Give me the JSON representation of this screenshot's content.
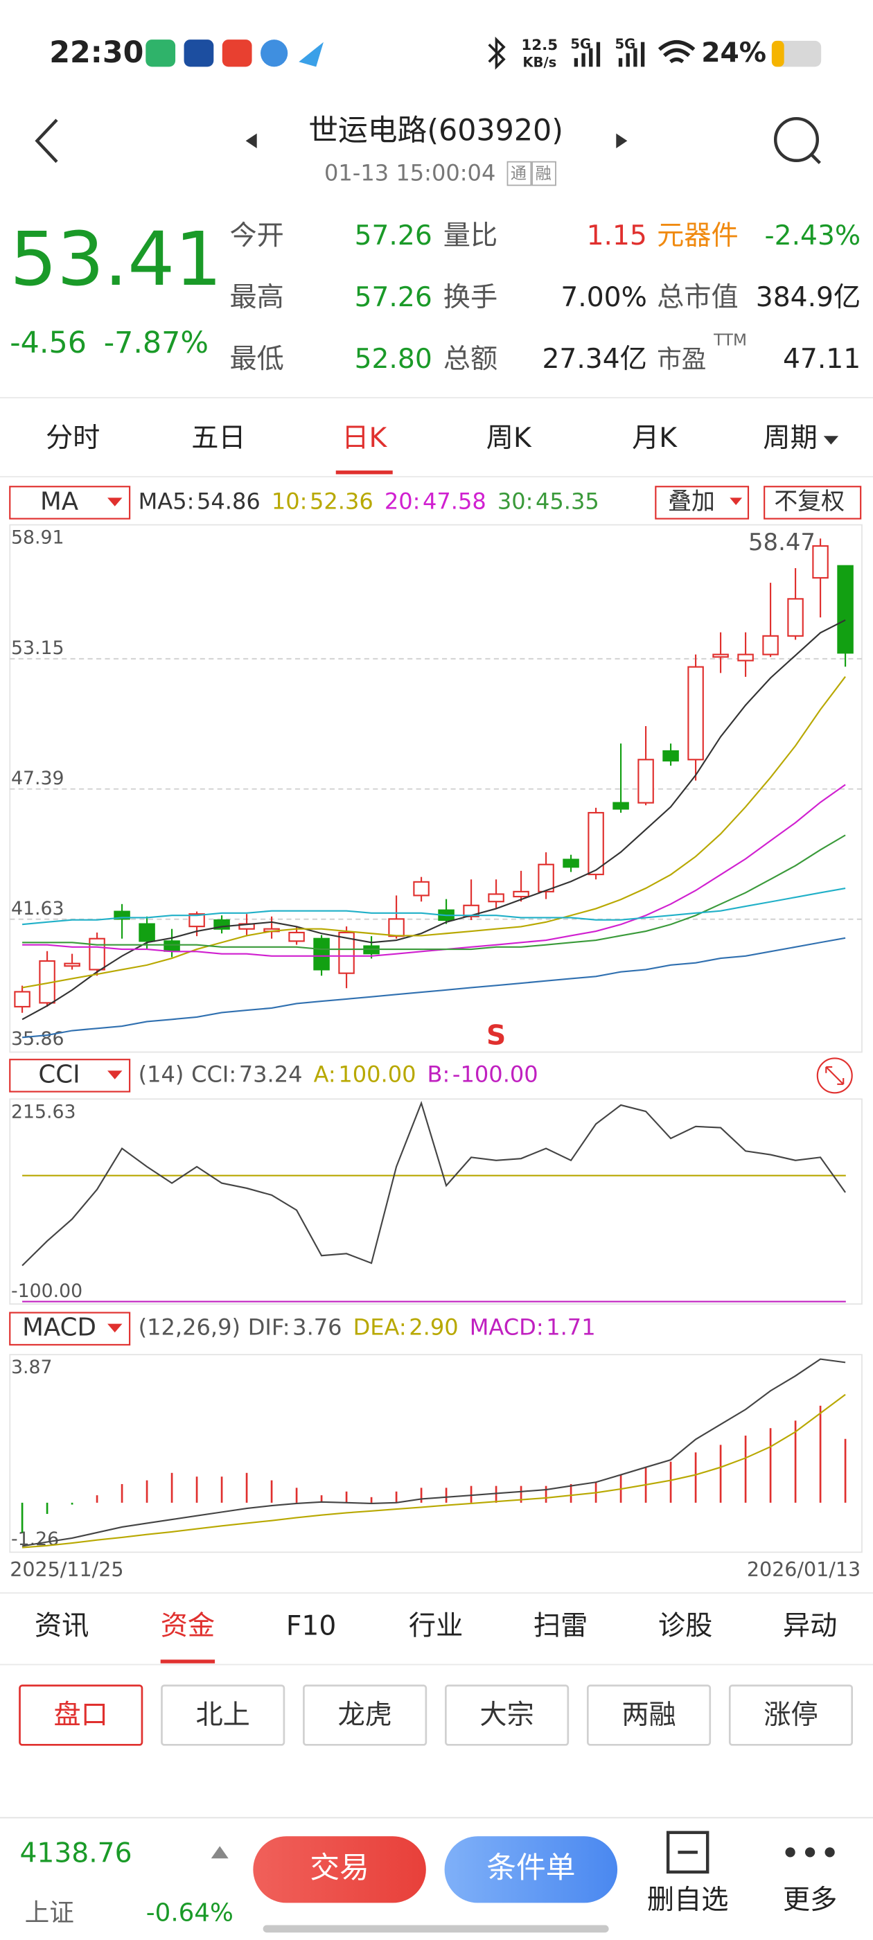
{
  "status_bar": {
    "time": "22:30",
    "net_speed": "12.5",
    "net_unit": "KB/s",
    "signal_1": "5G",
    "signal_2": "5G",
    "battery": "24%"
  },
  "header": {
    "title": "世运电路(603920)",
    "datetime": "01-13 15:00:04",
    "badges": [
      "通",
      "融"
    ]
  },
  "quote": {
    "price": "53.41",
    "change": "-4.56",
    "change_pct": "-7.87%",
    "stats": [
      [
        {
          "label": "今开",
          "value": "57.26",
          "value_color": "#1a9a28"
        },
        {
          "label": "量比",
          "value": "1.15",
          "value_color": "#e0302e"
        },
        {
          "label": "元器件",
          "label_color": "#f08a10",
          "value": "-2.43%",
          "value_color": "#1a9a28"
        }
      ],
      [
        {
          "label": "最高",
          "value": "57.26",
          "value_color": "#1a9a28"
        },
        {
          "label": "换手",
          "value": "7.00%"
        },
        {
          "label": "总市值",
          "value": "384.9亿"
        }
      ],
      [
        {
          "label": "最低",
          "value": "52.80",
          "value_color": "#1a9a28"
        },
        {
          "label": "总额",
          "value": "27.34亿"
        },
        {
          "label": "市盈",
          "sup": "TTM",
          "value": "47.11"
        }
      ]
    ]
  },
  "tabs": {
    "items": [
      "分时",
      "五日",
      "日K",
      "周K",
      "月K",
      "周期"
    ],
    "selected": 2
  },
  "chart_data": [
    {
      "type": "candlestick",
      "indicator": "MA",
      "buttons": [
        "叠加",
        "不复权"
      ],
      "up_color": "#e0302e",
      "down_color": "#12a012",
      "grid": true,
      "ylim": [
        35.86,
        58.91
      ],
      "yticks": [
        58.91,
        53.15,
        47.39,
        41.63,
        35.86
      ],
      "open": [
        37.76,
        37.93,
        39.56,
        39.4,
        41.97,
        41.42,
        40.66,
        41.31,
        41.59,
        41.2,
        41.09,
        40.66,
        40.77,
        39.24,
        40.44,
        40.88,
        42.68,
        42.03,
        41.75,
        42.41,
        42.63,
        42.85,
        44.27,
        43.61,
        46.78,
        46.78,
        49.07,
        48.69,
        53.23,
        53.07,
        53.34,
        54.16,
        56.73,
        57.26
      ],
      "high": [
        38.69,
        40.22,
        40.1,
        41.04,
        42.3,
        41.75,
        41.2,
        41.97,
        41.8,
        41.86,
        41.75,
        41.31,
        40.93,
        41.31,
        40.88,
        42.68,
        43.5,
        42.52,
        43.39,
        43.39,
        43.77,
        44.59,
        44.48,
        46.56,
        49.4,
        50.17,
        49.4,
        53.34,
        54.32,
        54.32,
        56.51,
        57.16,
        58.47,
        57.26
      ],
      "low": [
        37.49,
        37.76,
        39.4,
        39.13,
        40.77,
        40.33,
        39.95,
        40.88,
        41.0,
        40.88,
        40.77,
        40.5,
        39.13,
        38.58,
        39.89,
        40.77,
        42.41,
        41.42,
        41.59,
        42.13,
        42.41,
        42.52,
        43.72,
        43.39,
        46.34,
        46.67,
        48.42,
        47.76,
        52.52,
        52.35,
        53.23,
        53.99,
        54.98,
        52.8
      ],
      "close": [
        38.42,
        39.78,
        39.67,
        40.77,
        41.64,
        40.66,
        40.22,
        41.86,
        41.2,
        41.42,
        41.2,
        41.04,
        39.4,
        41.04,
        40.11,
        41.64,
        43.28,
        41.59,
        42.24,
        42.74,
        42.85,
        44.05,
        43.94,
        46.34,
        46.51,
        48.69,
        48.64,
        52.79,
        53.34,
        53.34,
        54.16,
        55.8,
        58.14,
        53.41
      ],
      "series": [
        {
          "name": "MA5:",
          "color": "#333333",
          "values": [
            37.2,
            37.8,
            38.5,
            39.3,
            40.0,
            40.6,
            40.8,
            41.1,
            41.3,
            41.4,
            41.5,
            41.3,
            41.0,
            40.8,
            40.6,
            40.7,
            41.0,
            41.5,
            41.8,
            42.1,
            42.5,
            42.9,
            43.3,
            43.8,
            44.6,
            45.6,
            46.6,
            48.0,
            49.7,
            51.1,
            52.3,
            53.3,
            54.3,
            54.86
          ]
        },
        {
          "name": "10:",
          "color": "#b8a800",
          "values": [
            38.6,
            38.8,
            39.0,
            39.2,
            39.4,
            39.6,
            39.9,
            40.3,
            40.6,
            40.9,
            41.1,
            41.2,
            41.2,
            41.1,
            41.0,
            40.9,
            40.9,
            41.0,
            41.1,
            41.2,
            41.3,
            41.5,
            41.8,
            42.1,
            42.5,
            43.0,
            43.6,
            44.4,
            45.4,
            46.6,
            47.9,
            49.3,
            50.9,
            52.36
          ]
        },
        {
          "name": "20:",
          "color": "#d020d0",
          "values": [
            40.5,
            40.5,
            40.4,
            40.4,
            40.3,
            40.3,
            40.2,
            40.2,
            40.1,
            40.1,
            40.0,
            40.0,
            40.0,
            40.0,
            40.0,
            40.1,
            40.2,
            40.3,
            40.4,
            40.5,
            40.6,
            40.7,
            40.9,
            41.1,
            41.4,
            41.8,
            42.3,
            42.9,
            43.6,
            44.3,
            45.1,
            45.9,
            46.8,
            47.58
          ]
        },
        {
          "name": "30:",
          "color": "#3a9a3a",
          "values": [
            40.6,
            40.6,
            40.6,
            40.5,
            40.5,
            40.5,
            40.5,
            40.5,
            40.4,
            40.4,
            40.4,
            40.4,
            40.3,
            40.3,
            40.3,
            40.3,
            40.3,
            40.3,
            40.3,
            40.4,
            40.4,
            40.5,
            40.6,
            40.7,
            40.9,
            41.1,
            41.4,
            41.8,
            42.3,
            42.8,
            43.4,
            44.0,
            44.7,
            45.35
          ]
        },
        {
          "color": "#20b0c8",
          "values": [
            41.4,
            41.5,
            41.6,
            41.6,
            41.7,
            41.7,
            41.8,
            41.8,
            41.9,
            41.9,
            42.0,
            42.0,
            42.0,
            42.0,
            41.9,
            41.9,
            41.9,
            41.8,
            41.8,
            41.8,
            41.7,
            41.7,
            41.7,
            41.6,
            41.6,
            41.7,
            41.8,
            41.9,
            42.0,
            42.2,
            42.4,
            42.6,
            42.8,
            43.0
          ]
        },
        {
          "color": "#3070b0",
          "values": [
            36.4,
            36.5,
            36.7,
            36.8,
            36.9,
            37.1,
            37.2,
            37.3,
            37.5,
            37.6,
            37.7,
            37.9,
            38.0,
            38.1,
            38.2,
            38.3,
            38.4,
            38.5,
            38.6,
            38.7,
            38.8,
            38.9,
            39.0,
            39.1,
            39.3,
            39.4,
            39.6,
            39.7,
            39.9,
            40.0,
            40.2,
            40.4,
            40.6,
            40.8
          ]
        }
      ],
      "signals": [
        {
          "label": "S",
          "index": 19
        }
      ]
    },
    {
      "type": "line",
      "indicator": "CCI",
      "params": "(14)",
      "ylim": [
        -100,
        215.63
      ],
      "yticks": [
        215.63,
        {
          "value": -100,
          "label": "-100.00"
        }
      ],
      "series": [
        {
          "name": "CCI:",
          "color": "#444444",
          "values": [
            -43,
            -4,
            31,
            78,
            143,
            114,
            88,
            114,
            88,
            80,
            69,
            45,
            -27,
            -24,
            -39,
            114,
            215,
            84,
            129,
            124,
            127,
            143,
            124,
            182,
            212,
            202,
            159,
            178,
            176,
            139,
            133,
            124,
            129,
            73.24
          ]
        }
      ],
      "refs": [
        {
          "name": "A:",
          "value": 100,
          "label": "100.00",
          "color": "#b8a800"
        },
        {
          "name": "B:",
          "value": -100,
          "label": "-100.00",
          "color": "#c020c0"
        }
      ]
    },
    {
      "type": "combo",
      "indicator": "MACD",
      "params": "(12,26,9)",
      "ylim": [
        -1.26,
        3.87
      ],
      "yticks": [
        3.87,
        -1.26
      ],
      "date_labels": [
        "2025/11/25",
        "2026/01/13"
      ],
      "series": [
        {
          "name": "DIF:",
          "color": "#444444",
          "values": [
            -1.16,
            -1.05,
            -0.95,
            -0.8,
            -0.65,
            -0.55,
            -0.45,
            -0.35,
            -0.25,
            -0.15,
            -0.08,
            -0.02,
            0.02,
            0.0,
            -0.02,
            0.0,
            0.1,
            0.15,
            0.2,
            0.25,
            0.3,
            0.35,
            0.45,
            0.55,
            0.75,
            0.95,
            1.15,
            1.7,
            2.1,
            2.5,
            3.0,
            3.4,
            3.85,
            3.76
          ]
        },
        {
          "name": "DEA:",
          "color": "#b8a800",
          "last_label": "2.90",
          "values": [
            -1.2,
            -1.15,
            -1.08,
            -1.0,
            -0.93,
            -0.85,
            -0.78,
            -0.7,
            -0.62,
            -0.55,
            -0.48,
            -0.4,
            -0.33,
            -0.27,
            -0.22,
            -0.17,
            -0.12,
            -0.07,
            -0.02,
            0.03,
            0.08,
            0.13,
            0.2,
            0.27,
            0.37,
            0.48,
            0.6,
            0.75,
            0.95,
            1.2,
            1.5,
            1.9,
            2.4,
            2.9
          ]
        }
      ],
      "histogram": {
        "name": "MACD:",
        "name_color": "#c020c0",
        "up_color": "#e0302e",
        "down_color": "#12a012",
        "values": [
          -0.8,
          -0.3,
          -0.05,
          0.2,
          0.5,
          0.6,
          0.8,
          0.7,
          0.7,
          0.8,
          0.6,
          0.4,
          0.2,
          0.3,
          0.15,
          0.3,
          0.4,
          0.4,
          0.45,
          0.45,
          0.45,
          0.45,
          0.5,
          0.55,
          0.75,
          0.95,
          1.1,
          1.35,
          1.55,
          1.8,
          2.0,
          2.2,
          2.6,
          1.71
        ]
      }
    }
  ],
  "bottom_tabs": {
    "items": [
      "资讯",
      "资金",
      "F10",
      "行业",
      "扫雷",
      "诊股",
      "异动"
    ],
    "selected": 1
  },
  "sub_tabs": {
    "items": [
      "盘口",
      "北上",
      "龙虎",
      "大宗",
      "两融",
      "涨停"
    ],
    "selected": 0
  },
  "footer": {
    "index_value": "4138.76",
    "index_name": "上证",
    "index_change": "-0.64%",
    "trade": "交易",
    "condition": "条件单",
    "remove": "删自选",
    "more": "更多"
  }
}
